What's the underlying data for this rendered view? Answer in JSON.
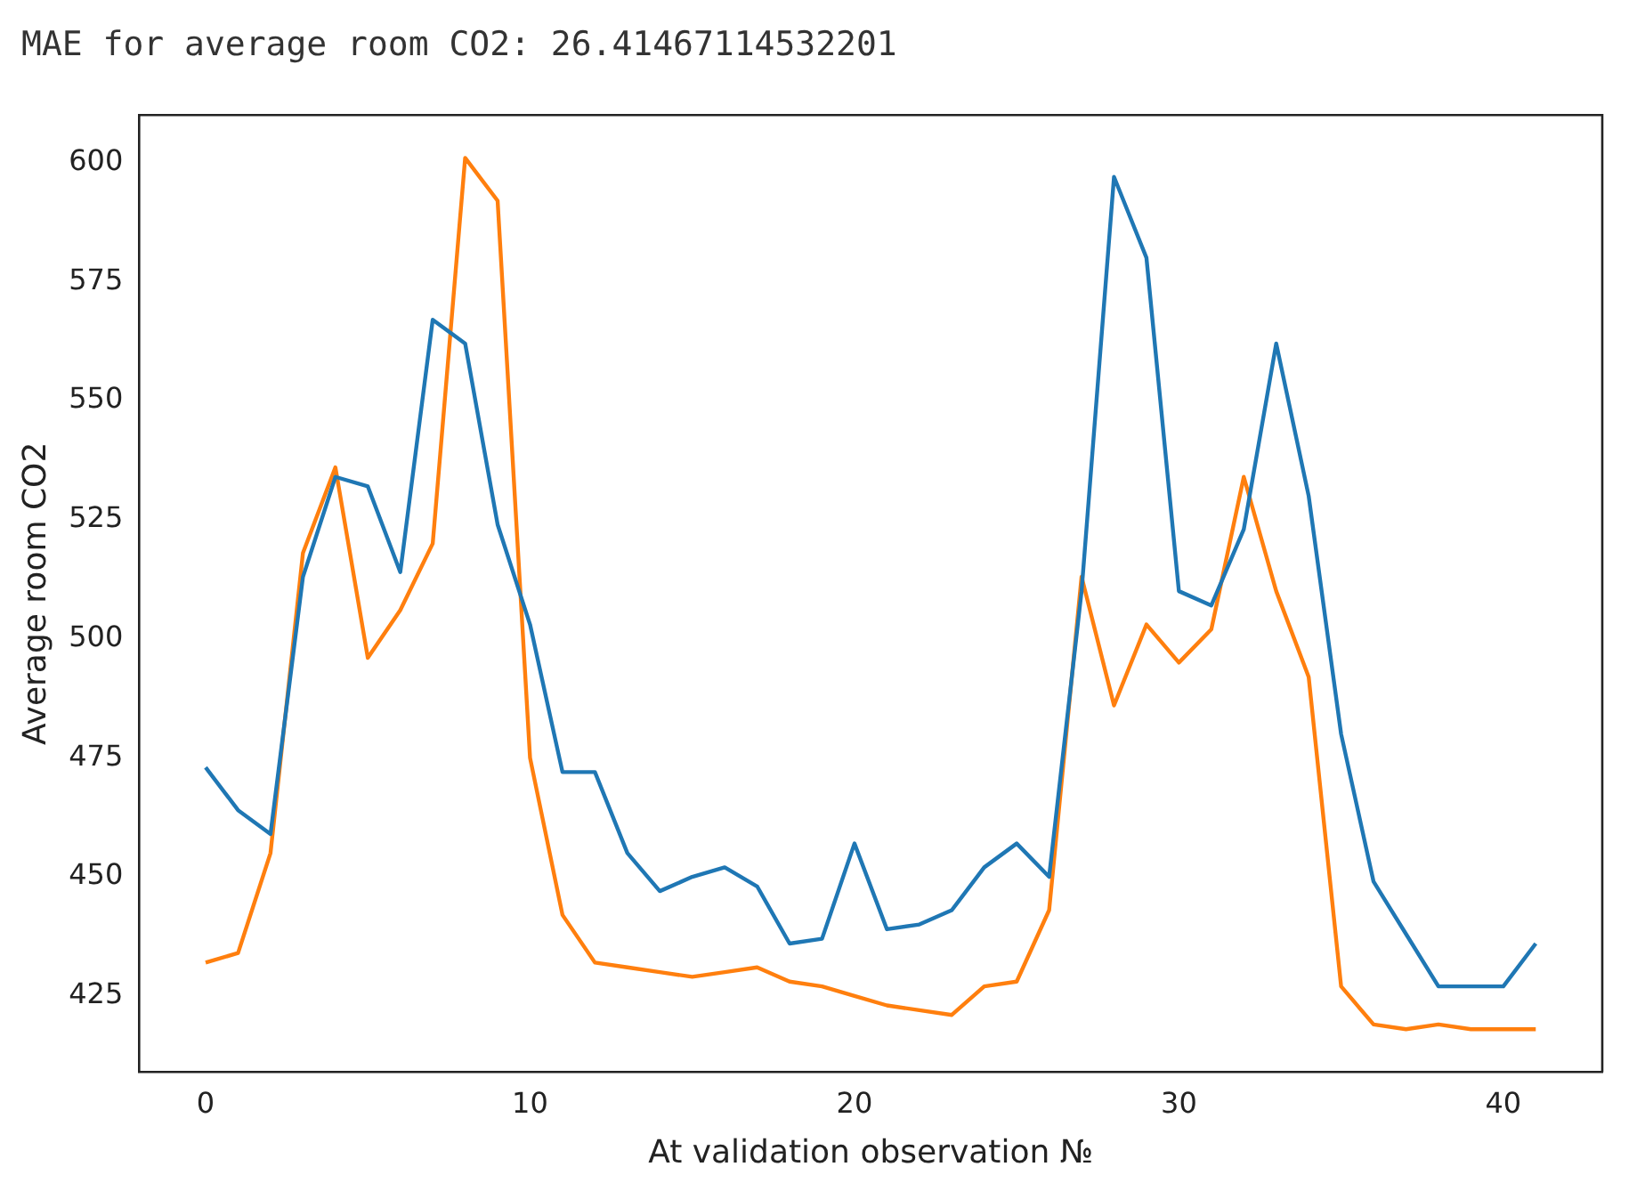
{
  "chart_data": {
    "type": "line",
    "title": "MAE for average room CO2: 26.41467114532201",
    "xlabel": "At validation observation №",
    "ylabel": "Average room CO2",
    "x": [
      0,
      1,
      2,
      3,
      4,
      5,
      6,
      7,
      8,
      9,
      10,
      11,
      12,
      13,
      14,
      15,
      16,
      17,
      18,
      19,
      20,
      21,
      22,
      23,
      24,
      25,
      26,
      27,
      28,
      29,
      30,
      31,
      32,
      33,
      34,
      35,
      36,
      37,
      38,
      39,
      40,
      41
    ],
    "series": [
      {
        "color": "#1f77b4",
        "values": [
          473,
          464,
          459,
          513,
          534,
          532,
          514,
          567,
          562,
          524,
          503,
          472,
          472,
          455,
          447,
          450,
          452,
          448,
          436,
          437,
          457,
          439,
          440,
          443,
          452,
          457,
          450,
          510,
          597,
          580,
          510,
          507,
          523,
          562,
          530,
          480,
          449,
          438,
          427,
          427,
          427,
          436
        ]
      },
      {
        "color": "#ff7f0e",
        "values": [
          432,
          434,
          455,
          518,
          536,
          496,
          506,
          520,
          601,
          592,
          475,
          442,
          432,
          431,
          430,
          429,
          430,
          431,
          428,
          427,
          425,
          423,
          422,
          421,
          427,
          428,
          443,
          513,
          486,
          503,
          495,
          502,
          534,
          510,
          492,
          427,
          419,
          418,
          419,
          418,
          418,
          418
        ]
      }
    ],
    "xlim": [
      -2.05,
      43.05
    ],
    "ylim": [
      409,
      610
    ],
    "xticks": [
      0,
      10,
      20,
      30,
      40
    ],
    "yticks": [
      425,
      450,
      475,
      500,
      525,
      550,
      575,
      600
    ],
    "grid": false,
    "legend": false,
    "line_style": "solid",
    "marker": "none"
  }
}
